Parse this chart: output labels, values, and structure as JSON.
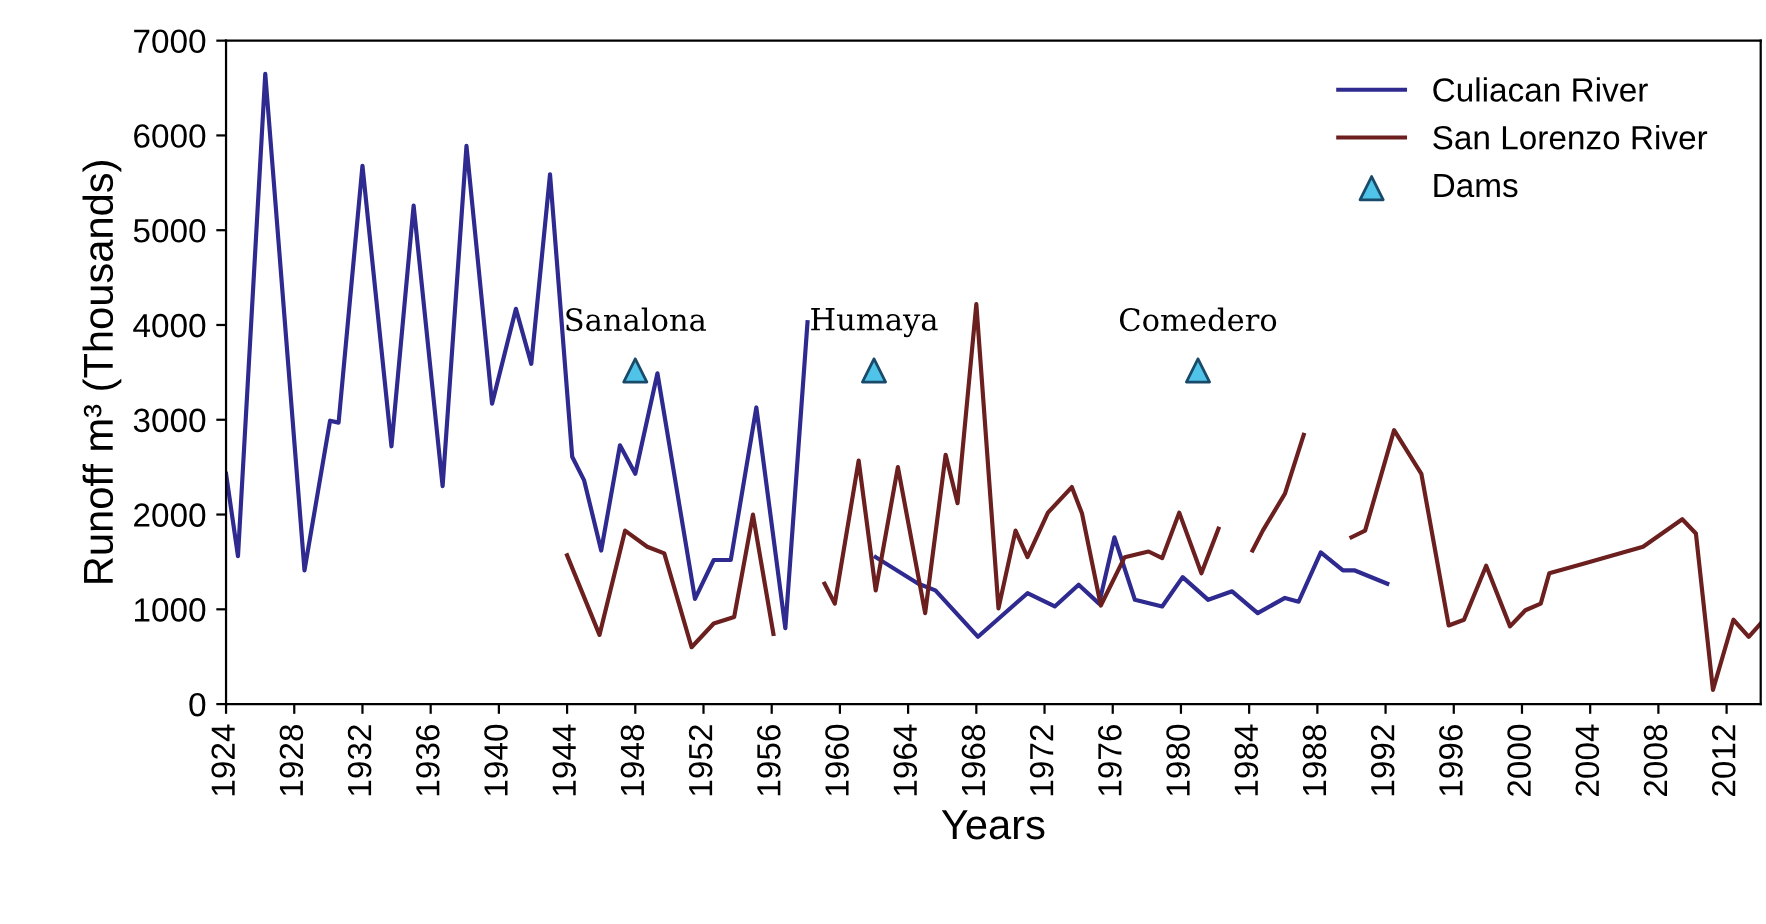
{
  "chart_data": {
    "type": "line",
    "xlabel": "Years",
    "ylabel": "Runoff m³ (Thousands)",
    "xlim": [
      1924,
      2014
    ],
    "xticks": [
      1924,
      1928,
      1932,
      1936,
      1940,
      1944,
      1948,
      1952,
      1956,
      1960,
      1964,
      1968,
      1972,
      1976,
      1980,
      1984,
      1988,
      1992,
      1996,
      2000,
      2004,
      2008,
      2012
    ],
    "ylim": [
      0,
      7000
    ],
    "yticks": [
      0,
      1000,
      2000,
      3000,
      4000,
      5000,
      6000,
      7000
    ],
    "legend": "top right",
    "grid": false,
    "line_style": "solid",
    "series": [
      {
        "name": "Culiacan River",
        "color": "#2e2a8f",
        "x": [
          1924,
          1924.7,
          1926.3,
          1928.6,
          1930.1,
          1930.6,
          1932,
          1933.7,
          1935,
          1936.7,
          1938.1,
          1939.6,
          1941,
          1941.9,
          1943,
          1944.3,
          1945,
          1946,
          1947.1,
          1948,
          1949.3,
          1951.5,
          1952.6,
          1953.6,
          1955.1,
          1956.8,
          1958.1,
          1960,
          1962.1,
          1964.6,
          1965.6,
          1968.1,
          1971,
          1972.6,
          1974,
          1975.2,
          1976.1,
          1977.3,
          1978.9,
          1980.1,
          1981.6,
          1983,
          1984.5,
          1986.1,
          1986.9,
          1988.2,
          1989.5,
          1990.2,
          1992.1
        ],
        "values": [
          2430,
          1560,
          6650,
          1410,
          2990,
          2970,
          5680,
          2720,
          5260,
          2300,
          5890,
          3170,
          4170,
          3590,
          5590,
          2610,
          2360,
          1620,
          2730,
          2430,
          3490,
          1110,
          1520,
          1520,
          3130,
          800,
          4030,
          null,
          1550,
          1270,
          1200,
          710,
          1170,
          1030,
          1260,
          1060,
          1760,
          1100,
          1030,
          1340,
          1100,
          1190,
          960,
          1120,
          1080,
          1600,
          1410,
          1410,
          1270
        ]
      },
      {
        "name": "San Lorenzo River",
        "color": "#6b1f1f",
        "x": [
          1944,
          1945.9,
          1947.4,
          1948.7,
          1949.7,
          1951.3,
          1952.6,
          1953.8,
          1954.9,
          1956.1,
          1957.5,
          1959.1,
          1959.7,
          1961.1,
          1962.1,
          1963.4,
          1965,
          1966.2,
          1966.9,
          1968,
          1969.3,
          1970.3,
          1971,
          1972.2,
          1973.6,
          1974.2,
          1975.3,
          1976.7,
          1978.1,
          1978.9,
          1979.9,
          1981.2,
          1982.2,
          1983.2,
          1984.2,
          1984.8,
          1986.1,
          1987.2,
          1988.5,
          1990,
          1990.8,
          1992.5,
          1994.1,
          1995.7,
          1996.6,
          1997.9,
          1999.3,
          2000.2,
          2001.1,
          2001.6,
          2003.6,
          2007.1,
          2009.4,
          2010.2,
          2011.2,
          2012.4,
          2013.3,
          2014
        ],
        "values": [
          1570,
          730,
          1830,
          1660,
          1590,
          600,
          850,
          920,
          2000,
          740,
          null,
          1270,
          1060,
          2570,
          1200,
          2500,
          960,
          2630,
          2120,
          4220,
          1010,
          1830,
          1550,
          2020,
          2290,
          2010,
          1040,
          1550,
          1610,
          1540,
          2020,
          1380,
          1850,
          null,
          1620,
          1830,
          2220,
          2840,
          null,
          1760,
          1830,
          2890,
          2430,
          830,
          890,
          1460,
          820,
          990,
          1060,
          1380,
          1480,
          1660,
          1950,
          1800,
          150,
          890,
          710,
          850
        ]
      },
      {
        "name": "Dams",
        "color": "#4fc3e8",
        "type": "scatter",
        "marker": "triangle",
        "x": [
          1948,
          1962,
          1981
        ],
        "values": [
          3520,
          3520,
          3520
        ]
      }
    ],
    "annotations": [
      {
        "text": "Sanalona",
        "x": 1948,
        "y": 3520
      },
      {
        "text": "Humaya",
        "x": 1962,
        "y": 3520
      },
      {
        "text": "Comedero",
        "x": 1981,
        "y": 3520
      }
    ]
  }
}
